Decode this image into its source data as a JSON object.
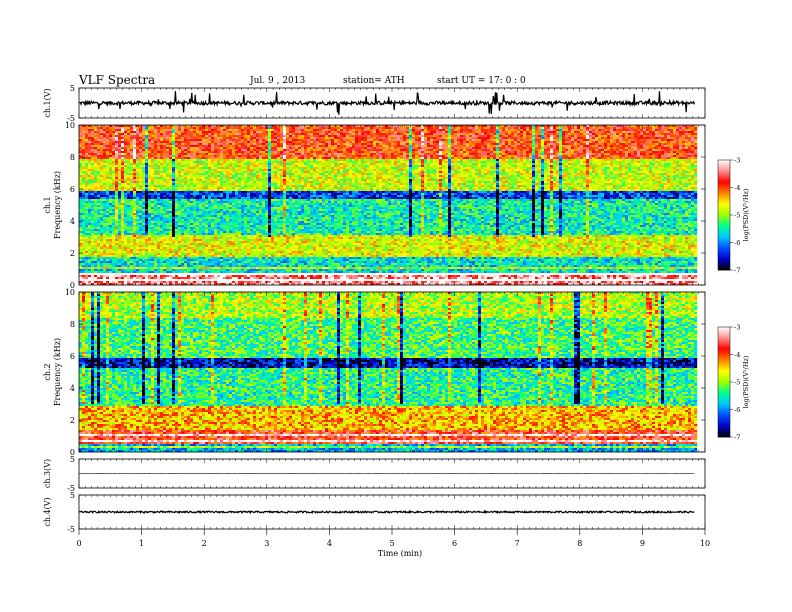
{
  "header": {
    "title": "VLF  Spectra",
    "date": "Jul.  9  , 2013",
    "station": "station= ATH",
    "start": "start  UT  =    17: 0  : 0"
  },
  "chart_data": [
    {
      "type": "line",
      "panel": "ch1-waveform",
      "ylabel": "ch.1(V)",
      "ylim": [
        -5,
        5
      ],
      "yticks": [
        "5",
        "-5"
      ],
      "series": [
        {
          "baseline": 0,
          "noise_amplitude": 0.6,
          "spike_amplitude": 4
        }
      ]
    },
    {
      "type": "heatmap",
      "panel": "ch1-spectrogram",
      "ylabel": "ch.1\nFrequency  (kHz)",
      "ylim": [
        0,
        10
      ],
      "yticks": [
        "0",
        "2",
        "4",
        "6",
        "8",
        "10"
      ],
      "colorbar": {
        "label": "log(PSD)(V²/Hz)",
        "range": [
          -7,
          -3
        ],
        "ticks": [
          "-3",
          "-4",
          "-5",
          "-6",
          "-7"
        ]
      },
      "bands": [
        {
          "freq_khz": [
            0,
            0.8
          ],
          "level": -3.4
        },
        {
          "freq_khz": [
            0.8,
            1.8
          ],
          "level": -5.6
        },
        {
          "freq_khz": [
            1.8,
            3.2
          ],
          "level": -4.7
        },
        {
          "freq_khz": [
            3.2,
            5.5
          ],
          "level": -5.5
        },
        {
          "freq_khz": [
            5.5,
            6.0
          ],
          "level": -6.3
        },
        {
          "freq_khz": [
            6.0,
            8.0
          ],
          "level": -4.8
        },
        {
          "freq_khz": [
            8.0,
            10.0
          ],
          "level": -3.9
        }
      ]
    },
    {
      "type": "heatmap",
      "panel": "ch2-spectrogram",
      "ylabel": "ch.2\nFrequency  (kHz)",
      "ylim": [
        0,
        10
      ],
      "yticks": [
        "0",
        "2",
        "4",
        "6",
        "8",
        "10"
      ],
      "colorbar": {
        "label": "log(PSD)(V²/Hz)",
        "range": [
          -7,
          -3
        ],
        "ticks": [
          "-3",
          "-4",
          "-5",
          "-6",
          "-7"
        ]
      },
      "bands": [
        {
          "freq_khz": [
            0,
            0.6
          ],
          "level": -5.8
        },
        {
          "freq_khz": [
            0.6,
            1.4
          ],
          "level": -3.8
        },
        {
          "freq_khz": [
            1.4,
            3.0
          ],
          "level": -4.4
        },
        {
          "freq_khz": [
            3.0,
            5.3
          ],
          "level": -5.4
        },
        {
          "freq_khz": [
            5.3,
            6.0
          ],
          "level": -6.6
        },
        {
          "freq_khz": [
            6.0,
            8.5
          ],
          "level": -5.3
        },
        {
          "freq_khz": [
            8.5,
            10.0
          ],
          "level": -4.9
        }
      ]
    },
    {
      "type": "line",
      "panel": "ch3-waveform",
      "ylabel": "ch.3(V)",
      "ylim": [
        -5,
        5
      ],
      "yticks": [
        "5",
        "-5"
      ],
      "series": [
        {
          "baseline": 0,
          "noise_amplitude": 0.05
        }
      ]
    },
    {
      "type": "line",
      "panel": "ch4-waveform",
      "ylabel": "ch.4(V)",
      "ylim": [
        -5,
        5
      ],
      "yticks": [
        "5",
        "-5"
      ],
      "series": [
        {
          "baseline": 0,
          "noise_amplitude": 0.25
        }
      ]
    }
  ],
  "xaxis": {
    "label": "Time  (min)",
    "xlim": [
      0,
      10
    ],
    "ticks": [
      "0",
      "1",
      "2",
      "3",
      "4",
      "5",
      "6",
      "7",
      "8",
      "9",
      "10"
    ],
    "data_end_min": 9.83
  },
  "colors": {
    "colormap": [
      "#000000",
      "#0000c8",
      "#0050ff",
      "#00c8ff",
      "#00ff90",
      "#a0ff00",
      "#ffff00",
      "#ff8000",
      "#ff0000",
      "#ff9090",
      "#ffffff"
    ]
  }
}
